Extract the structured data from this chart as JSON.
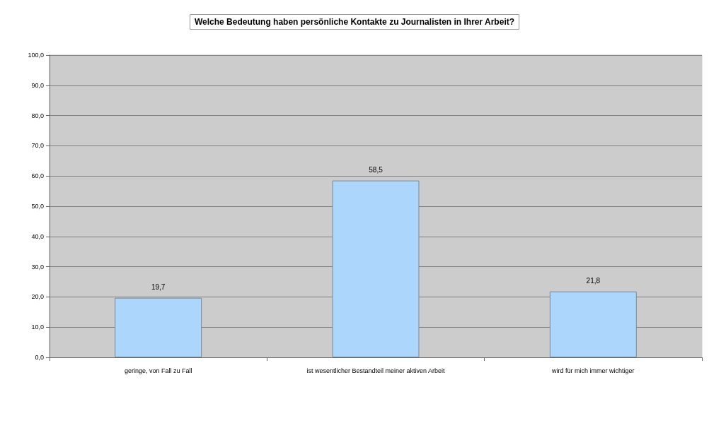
{
  "chart_data": {
    "type": "bar",
    "title": "Welche Bedeutung haben persönliche Kontakte zu Journalisten in Ihrer Arbeit?",
    "categories": [
      "geringe, von Fall zu Fall",
      "ist wesentlicher Bestandteil meiner aktiven Arbeit",
      "wird für mich immer wichtiger"
    ],
    "values": [
      19.7,
      58.5,
      21.8
    ],
    "value_labels": [
      "19,7",
      "58,5",
      "21,8"
    ],
    "color": "#acd6fc",
    "ylim": [
      0,
      100
    ],
    "yticks": [
      {
        "value": 0,
        "label": "0,0"
      },
      {
        "value": 10,
        "label": "10,0"
      },
      {
        "value": 20,
        "label": "20,0"
      },
      {
        "value": 30,
        "label": "30,0"
      },
      {
        "value": 40,
        "label": "40,0"
      },
      {
        "value": 50,
        "label": "50,0"
      },
      {
        "value": 60,
        "label": "60,0"
      },
      {
        "value": 70,
        "label": "70,0"
      },
      {
        "value": 80,
        "label": "80,0"
      },
      {
        "value": 90,
        "label": "90,0"
      },
      {
        "value": 100,
        "label": "100,0"
      }
    ],
    "grid": "y"
  }
}
